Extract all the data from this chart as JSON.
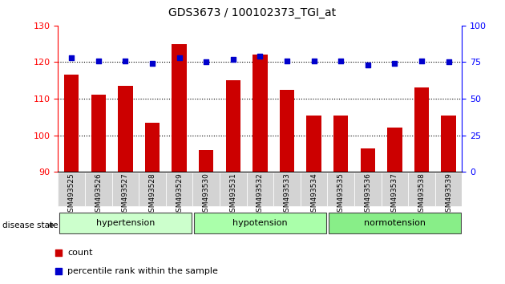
{
  "title": "GDS3673 / 100102373_TGI_at",
  "samples": [
    "GSM493525",
    "GSM493526",
    "GSM493527",
    "GSM493528",
    "GSM493529",
    "GSM493530",
    "GSM493531",
    "GSM493532",
    "GSM493533",
    "GSM493534",
    "GSM493535",
    "GSM493536",
    "GSM493537",
    "GSM493538",
    "GSM493539"
  ],
  "counts": [
    116.5,
    111.0,
    113.5,
    103.5,
    125.0,
    96.0,
    115.0,
    122.0,
    112.5,
    105.5,
    105.5,
    96.5,
    102.0,
    113.0,
    105.5
  ],
  "percentiles": [
    78,
    76,
    76,
    74,
    78,
    75,
    77,
    79,
    76,
    76,
    76,
    73,
    74,
    76,
    75
  ],
  "ylim_left": [
    90,
    130
  ],
  "ylim_right": [
    0,
    100
  ],
  "yticks_left": [
    90,
    100,
    110,
    120,
    130
  ],
  "yticks_right": [
    0,
    25,
    50,
    75,
    100
  ],
  "hlines": [
    100,
    110,
    120
  ],
  "bar_color": "#CC0000",
  "dot_color": "#0000CC",
  "bar_width": 0.55,
  "bar_bottom": 90,
  "group_info": [
    {
      "name": "hypertension",
      "start": 0,
      "end": 4,
      "color": "#ccffcc"
    },
    {
      "name": "hypotension",
      "start": 5,
      "end": 9,
      "color": "#aaffaa"
    },
    {
      "name": "normotension",
      "start": 10,
      "end": 14,
      "color": "#88ee88"
    }
  ],
  "tick_bg_color": "#d3d3d3",
  "legend_items": [
    {
      "label": "count",
      "color": "#CC0000",
      "marker": "s"
    },
    {
      "label": "percentile rank within the sample",
      "color": "#0000CC",
      "marker": "s"
    }
  ]
}
